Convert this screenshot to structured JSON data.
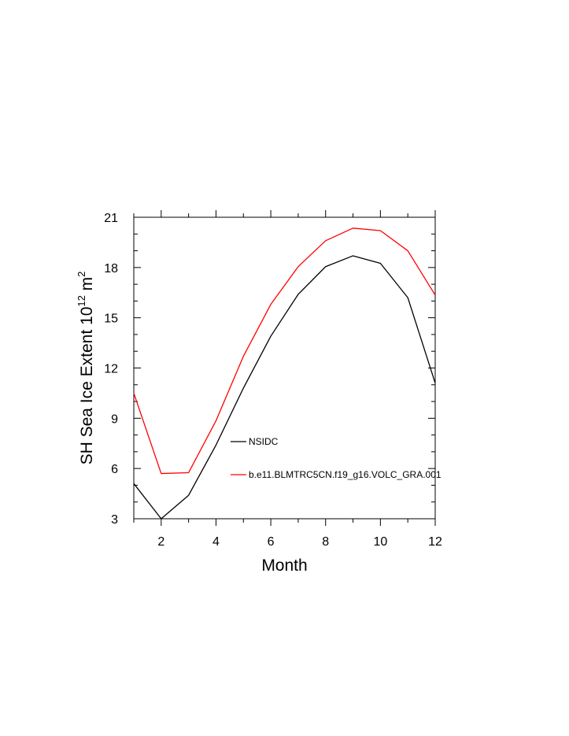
{
  "chart_data": {
    "type": "line",
    "title": "",
    "xlabel": "Month",
    "ylabel_main": "SH Sea Ice Extent 10",
    "ylabel_exp": "12",
    "ylabel_unit": " m",
    "ylabel_unit_exp": "2",
    "xlim": [
      1,
      12
    ],
    "ylim": [
      3,
      21
    ],
    "xticks": [
      2,
      4,
      6,
      8,
      10,
      12
    ],
    "yticks": [
      3,
      6,
      9,
      12,
      15,
      18,
      21
    ],
    "grid": false,
    "legend_position": "inside-lower-center",
    "x": [
      1,
      2,
      3,
      4,
      5,
      6,
      7,
      8,
      9,
      10,
      11,
      12
    ],
    "series": [
      {
        "name": "NSIDC",
        "color": "#000000",
        "values": [
          5.1,
          3.0,
          4.4,
          7.4,
          10.8,
          13.9,
          16.4,
          18.05,
          18.7,
          18.25,
          16.2,
          11.1
        ]
      },
      {
        "name": "b.e11.BLMTRC5CN.f19_g16.VOLC_GRA.001",
        "color": "#ff0000",
        "values": [
          10.5,
          5.7,
          5.75,
          8.85,
          12.7,
          15.8,
          18.05,
          19.6,
          20.35,
          20.2,
          19.0,
          16.35
        ]
      }
    ]
  }
}
